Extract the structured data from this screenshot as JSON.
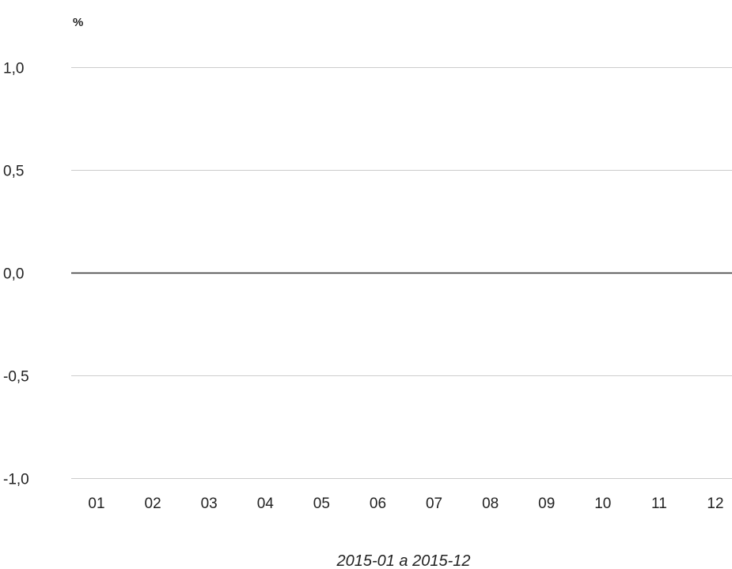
{
  "chart_data": {
    "type": "line",
    "title": "",
    "ylabel": "%",
    "xlabel": "2015-01 a 2015-12",
    "categories": [
      "01",
      "02",
      "03",
      "04",
      "05",
      "06",
      "07",
      "08",
      "09",
      "10",
      "11",
      "12"
    ],
    "y_ticks": [
      1.0,
      0.5,
      0.0,
      -0.5,
      -1.0
    ],
    "y_tick_labels": [
      "1,0",
      "0,5",
      "0,0",
      "-0,5",
      "-1,0"
    ],
    "ylim": [
      -1.0,
      1.0
    ],
    "grid": true,
    "zero_line": true,
    "series": []
  },
  "colors": {
    "grid": "#cccccc",
    "zero_line": "#333333",
    "text": "#222222"
  }
}
